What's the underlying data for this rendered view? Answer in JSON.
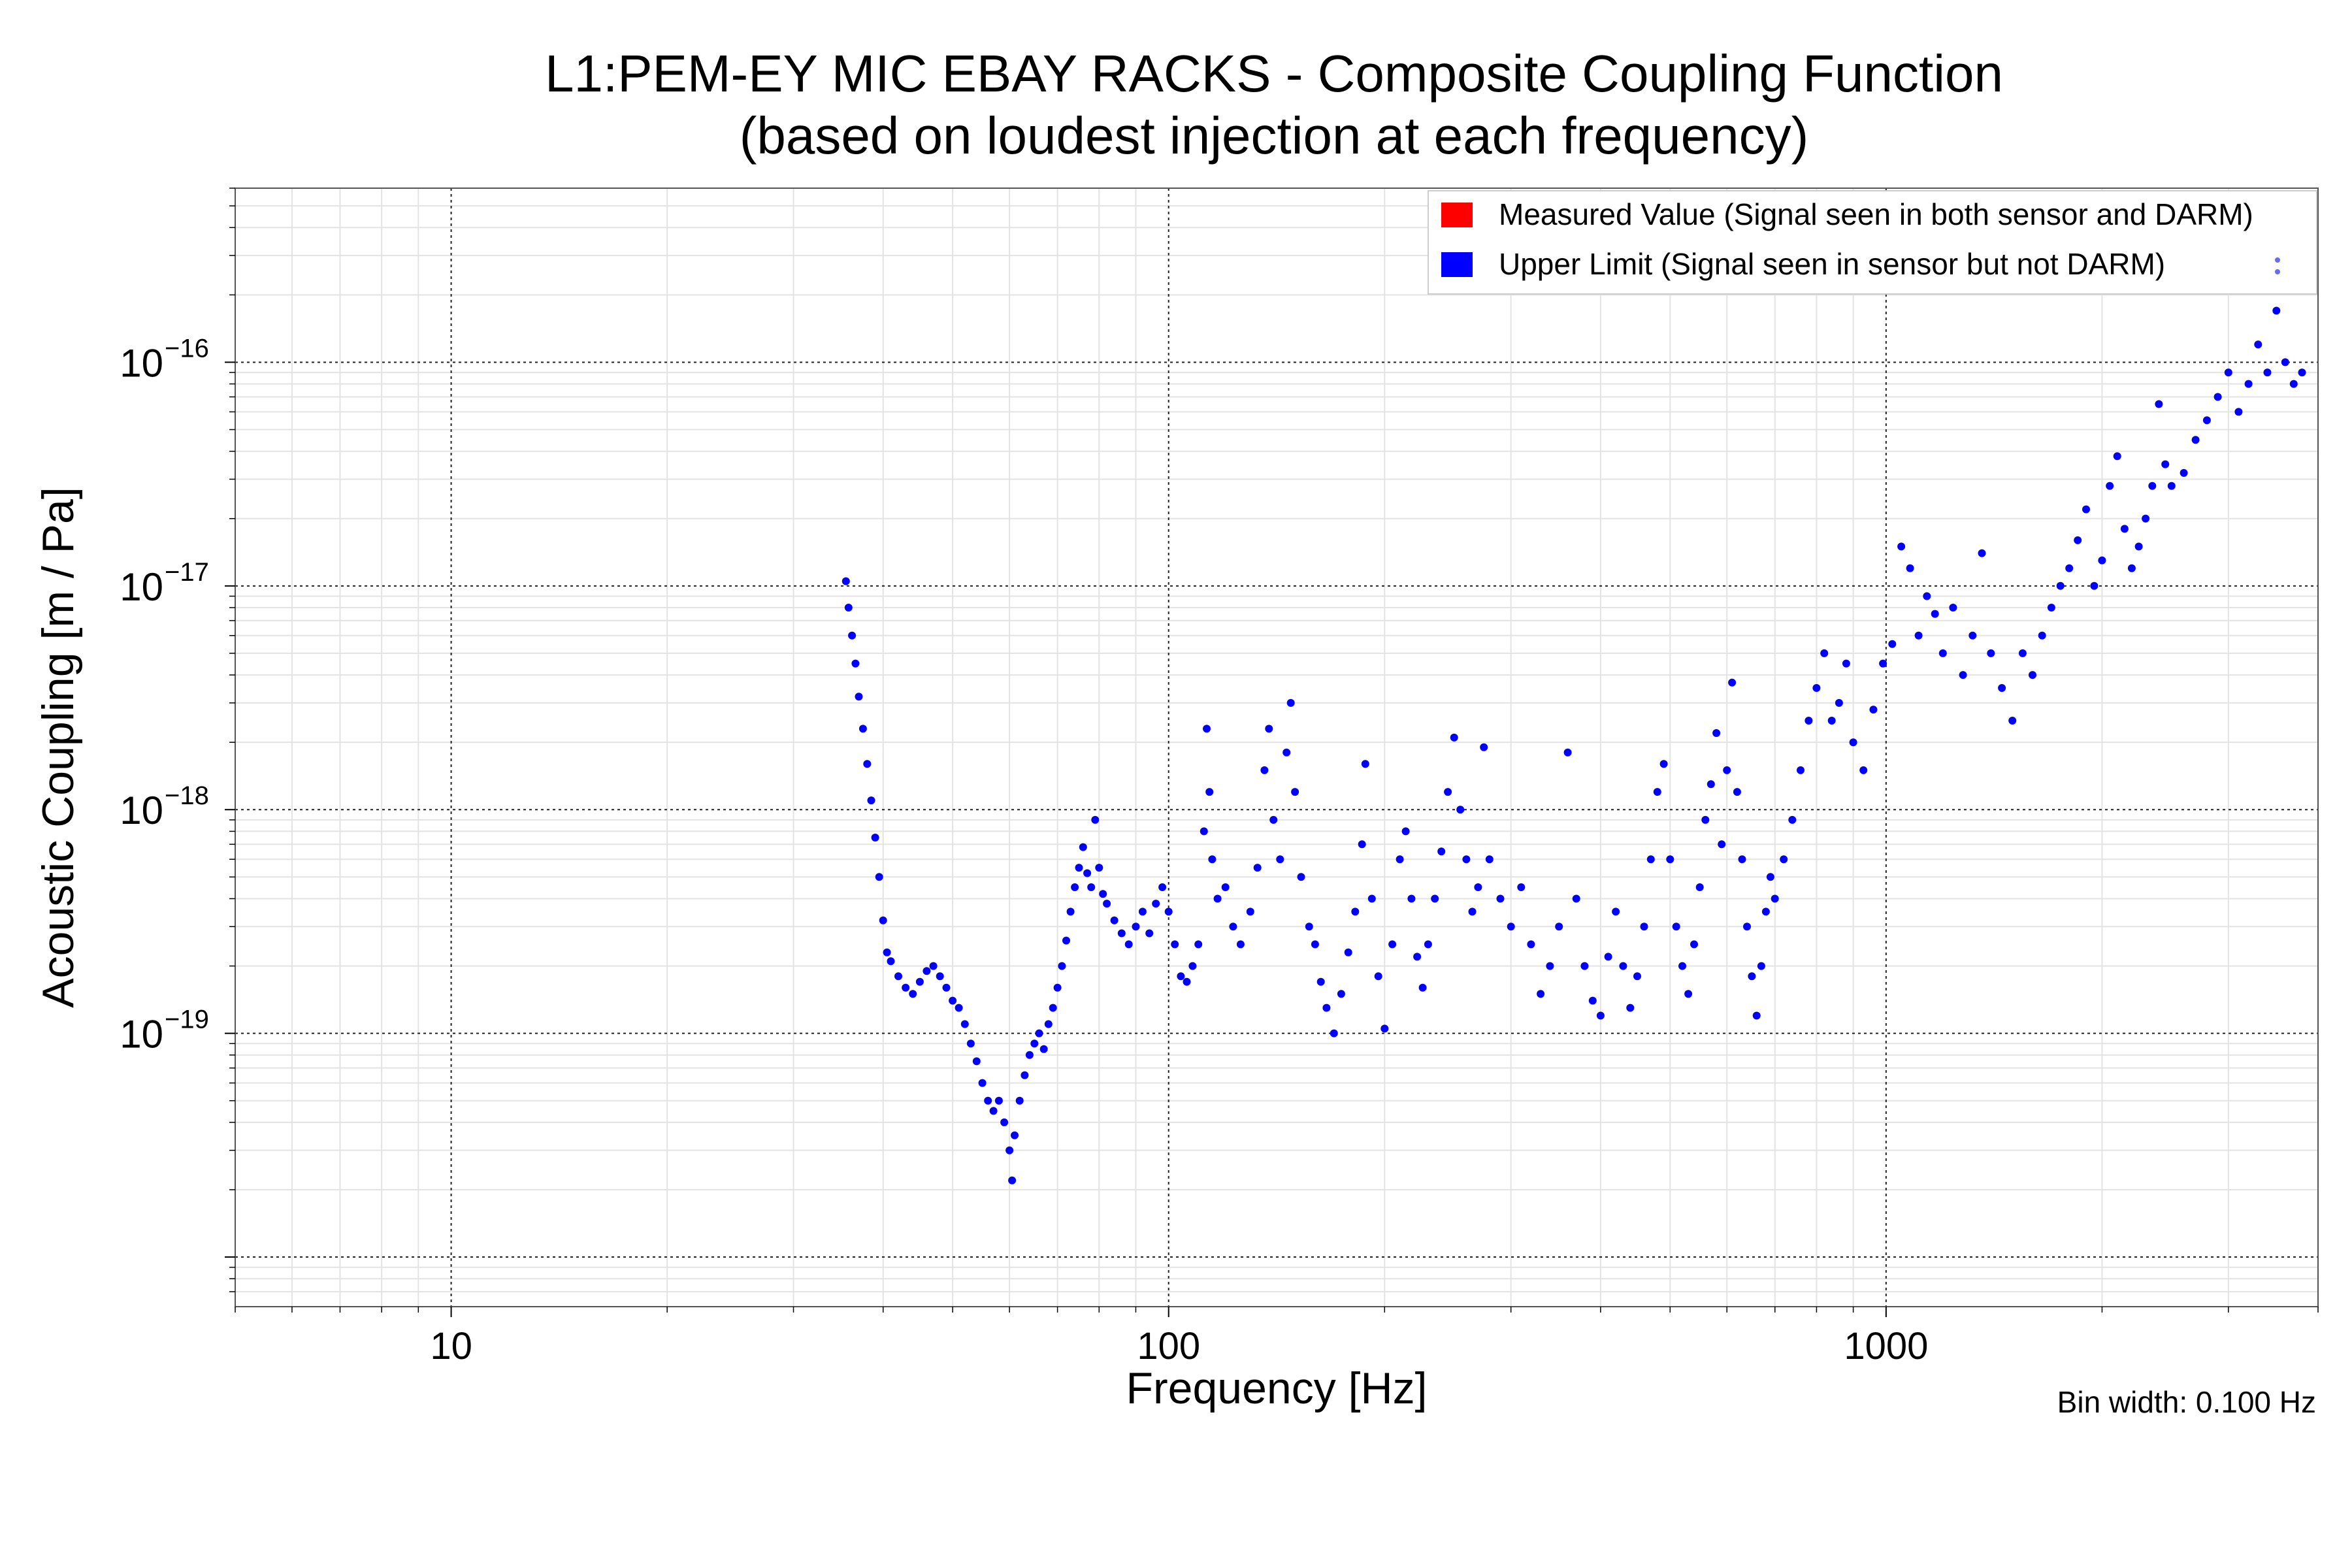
{
  "chart_data": {
    "type": "scatter",
    "title_line1": "L1:PEM-EY MIC EBAY RACKS - Composite Coupling Function",
    "title_line2": "(based on loudest injection at each frequency)",
    "xlabel": "Frequency [Hz]",
    "ylabel": "Acoustic Coupling [m / Pa]",
    "x_scale": "log",
    "y_scale": "log",
    "xlim": [
      5,
      4000
    ],
    "ylim": [
      6e-21,
      6e-16
    ],
    "grid": true,
    "legend_placement": "top-right",
    "x_tick_labels": [
      {
        "value": 10,
        "label": "10"
      },
      {
        "value": 100,
        "label": "100"
      },
      {
        "value": 1000,
        "label": "1000"
      }
    ],
    "y_tick_labels": [
      {
        "value": 1e-19,
        "base": "10",
        "exp": "−19"
      },
      {
        "value": 1e-18,
        "base": "10",
        "exp": "−18"
      },
      {
        "value": 1e-17,
        "base": "10",
        "exp": "−17"
      },
      {
        "value": 1e-16,
        "base": "10",
        "exp": "−16"
      }
    ],
    "annotation": "Bin width: 0.100 Hz",
    "series": [
      {
        "name": "Measured Value (Signal seen in both sensor and DARM)",
        "color": "#ff0000",
        "points": []
      },
      {
        "name": "Upper Limit (Signal seen in sensor but not DARM)",
        "color": "#0000ff",
        "points": [
          [
            35.5,
            1.05e-17
          ],
          [
            35.8,
            8e-18
          ],
          [
            36.2,
            6e-18
          ],
          [
            36.6,
            4.5e-18
          ],
          [
            37.0,
            3.2e-18
          ],
          [
            37.5,
            2.3e-18
          ],
          [
            38.0,
            1.6e-18
          ],
          [
            38.5,
            1.1e-18
          ],
          [
            39.0,
            7.5e-19
          ],
          [
            39.5,
            5e-19
          ],
          [
            40.0,
            3.2e-19
          ],
          [
            40.5,
            2.3e-19
          ],
          [
            41.0,
            2.1e-19
          ],
          [
            42.0,
            1.8e-19
          ],
          [
            43.0,
            1.6e-19
          ],
          [
            44.0,
            1.5e-19
          ],
          [
            45.0,
            1.7e-19
          ],
          [
            46.0,
            1.9e-19
          ],
          [
            47.0,
            2e-19
          ],
          [
            48.0,
            1.8e-19
          ],
          [
            49.0,
            1.6e-19
          ],
          [
            50.0,
            1.4e-19
          ],
          [
            51.0,
            1.3e-19
          ],
          [
            52.0,
            1.1e-19
          ],
          [
            53.0,
            9e-20
          ],
          [
            54.0,
            7.5e-20
          ],
          [
            55.0,
            6e-20
          ],
          [
            56.0,
            5e-20
          ],
          [
            57.0,
            4.5e-20
          ],
          [
            58.0,
            5e-20
          ],
          [
            59.0,
            4e-20
          ],
          [
            60.0,
            3e-20
          ],
          [
            60.5,
            2.2e-20
          ],
          [
            61.0,
            3.5e-20
          ],
          [
            62.0,
            5e-20
          ],
          [
            63.0,
            6.5e-20
          ],
          [
            64.0,
            8e-20
          ],
          [
            65.0,
            9e-20
          ],
          [
            66.0,
            1e-19
          ],
          [
            67.0,
            8.5e-20
          ],
          [
            68.0,
            1.1e-19
          ],
          [
            69.0,
            1.3e-19
          ],
          [
            70.0,
            1.6e-19
          ],
          [
            71.0,
            2e-19
          ],
          [
            72.0,
            2.6e-19
          ],
          [
            73.0,
            3.5e-19
          ],
          [
            74.0,
            4.5e-19
          ],
          [
            75.0,
            5.5e-19
          ],
          [
            76.0,
            6.8e-19
          ],
          [
            77.0,
            5.2e-19
          ],
          [
            78.0,
            4.5e-19
          ],
          [
            79.0,
            9e-19
          ],
          [
            80.0,
            5.5e-19
          ],
          [
            81.0,
            4.2e-19
          ],
          [
            82.0,
            3.8e-19
          ],
          [
            84.0,
            3.2e-19
          ],
          [
            86.0,
            2.8e-19
          ],
          [
            88.0,
            2.5e-19
          ],
          [
            90.0,
            3e-19
          ],
          [
            92.0,
            3.5e-19
          ],
          [
            94.0,
            2.8e-19
          ],
          [
            96.0,
            3.8e-19
          ],
          [
            98.0,
            4.5e-19
          ],
          [
            100.0,
            3.5e-19
          ],
          [
            102.0,
            2.5e-19
          ],
          [
            104.0,
            1.8e-19
          ],
          [
            106.0,
            1.7e-19
          ],
          [
            108.0,
            2e-19
          ],
          [
            110.0,
            2.5e-19
          ],
          [
            112.0,
            8e-19
          ],
          [
            113.0,
            2.3e-18
          ],
          [
            114.0,
            1.2e-18
          ],
          [
            115.0,
            6e-19
          ],
          [
            117.0,
            4e-19
          ],
          [
            120.0,
            4.5e-19
          ],
          [
            123.0,
            3e-19
          ],
          [
            126.0,
            2.5e-19
          ],
          [
            130.0,
            3.5e-19
          ],
          [
            133.0,
            5.5e-19
          ],
          [
            136.0,
            1.5e-18
          ],
          [
            138.0,
            2.3e-18
          ],
          [
            140.0,
            9e-19
          ],
          [
            143.0,
            6e-19
          ],
          [
            146.0,
            1.8e-18
          ],
          [
            148.0,
            3e-18
          ],
          [
            150.0,
            1.2e-18
          ],
          [
            153.0,
            5e-19
          ],
          [
            157.0,
            3e-19
          ],
          [
            160.0,
            2.5e-19
          ],
          [
            163.0,
            1.7e-19
          ],
          [
            166.0,
            1.3e-19
          ],
          [
            170.0,
            1e-19
          ],
          [
            174.0,
            1.5e-19
          ],
          [
            178.0,
            2.3e-19
          ],
          [
            182.0,
            3.5e-19
          ],
          [
            186.0,
            7e-19
          ],
          [
            188.0,
            1.6e-18
          ],
          [
            192.0,
            4e-19
          ],
          [
            196.0,
            1.8e-19
          ],
          [
            200.0,
            1.05e-19
          ],
          [
            205.0,
            2.5e-19
          ],
          [
            210.0,
            6e-19
          ],
          [
            214.0,
            8e-19
          ],
          [
            218.0,
            4e-19
          ],
          [
            222.0,
            2.2e-19
          ],
          [
            226.0,
            1.6e-19
          ],
          [
            230.0,
            2.5e-19
          ],
          [
            235.0,
            4e-19
          ],
          [
            240.0,
            6.5e-19
          ],
          [
            245.0,
            1.2e-18
          ],
          [
            250.0,
            2.1e-18
          ],
          [
            255.0,
            1e-18
          ],
          [
            260.0,
            6e-19
          ],
          [
            265.0,
            3.5e-19
          ],
          [
            270.0,
            4.5e-19
          ],
          [
            275.0,
            1.9e-18
          ],
          [
            280.0,
            6e-19
          ],
          [
            290.0,
            4e-19
          ],
          [
            300.0,
            3e-19
          ],
          [
            310.0,
            4.5e-19
          ],
          [
            320.0,
            2.5e-19
          ],
          [
            330.0,
            1.5e-19
          ],
          [
            340.0,
            2e-19
          ],
          [
            350.0,
            3e-19
          ],
          [
            360.0,
            1.8e-18
          ],
          [
            370.0,
            4e-19
          ],
          [
            380.0,
            2e-19
          ],
          [
            390.0,
            1.4e-19
          ],
          [
            400.0,
            1.2e-19
          ],
          [
            410.0,
            2.2e-19
          ],
          [
            420.0,
            3.5e-19
          ],
          [
            430.0,
            2e-19
          ],
          [
            440.0,
            1.3e-19
          ],
          [
            450.0,
            1.8e-19
          ],
          [
            460.0,
            3e-19
          ],
          [
            470.0,
            6e-19
          ],
          [
            480.0,
            1.2e-18
          ],
          [
            490.0,
            1.6e-18
          ],
          [
            500.0,
            6e-19
          ],
          [
            510.0,
            3e-19
          ],
          [
            520.0,
            2e-19
          ],
          [
            530.0,
            1.5e-19
          ],
          [
            540.0,
            2.5e-19
          ],
          [
            550.0,
            4.5e-19
          ],
          [
            560.0,
            9e-19
          ],
          [
            570.0,
            1.3e-18
          ],
          [
            580.0,
            2.2e-18
          ],
          [
            590.0,
            7e-19
          ],
          [
            600.0,
            1.5e-18
          ],
          [
            610.0,
            3.7e-18
          ],
          [
            620.0,
            1.2e-18
          ],
          [
            630.0,
            6e-19
          ],
          [
            640.0,
            3e-19
          ],
          [
            650.0,
            1.8e-19
          ],
          [
            660.0,
            1.2e-19
          ],
          [
            670.0,
            2e-19
          ],
          [
            680.0,
            3.5e-19
          ],
          [
            690.0,
            5e-19
          ],
          [
            700.0,
            4e-19
          ],
          [
            720.0,
            6e-19
          ],
          [
            740.0,
            9e-19
          ],
          [
            760.0,
            1.5e-18
          ],
          [
            780.0,
            2.5e-18
          ],
          [
            800.0,
            3.5e-18
          ],
          [
            820.0,
            5e-18
          ],
          [
            840.0,
            2.5e-18
          ],
          [
            860.0,
            3e-18
          ],
          [
            880.0,
            4.5e-18
          ],
          [
            900.0,
            2e-18
          ],
          [
            930.0,
            1.5e-18
          ],
          [
            960.0,
            2.8e-18
          ],
          [
            990.0,
            4.5e-18
          ],
          [
            1020.0,
            5.5e-18
          ],
          [
            1050.0,
            1.5e-17
          ],
          [
            1080.0,
            1.2e-17
          ],
          [
            1110.0,
            6e-18
          ],
          [
            1140.0,
            9e-18
          ],
          [
            1170.0,
            7.5e-18
          ],
          [
            1200.0,
            5e-18
          ],
          [
            1240.0,
            8e-18
          ],
          [
            1280.0,
            4e-18
          ],
          [
            1320.0,
            6e-18
          ],
          [
            1360.0,
            1.4e-17
          ],
          [
            1400.0,
            5e-18
          ],
          [
            1450.0,
            3.5e-18
          ],
          [
            1500.0,
            2.5e-18
          ],
          [
            1550.0,
            5e-18
          ],
          [
            1600.0,
            4e-18
          ],
          [
            1650.0,
            6e-18
          ],
          [
            1700.0,
            8e-18
          ],
          [
            1750.0,
            1e-17
          ],
          [
            1800.0,
            1.2e-17
          ],
          [
            1850.0,
            1.6e-17
          ],
          [
            1900.0,
            2.2e-17
          ],
          [
            1950.0,
            1e-17
          ],
          [
            2000.0,
            1.3e-17
          ],
          [
            2050.0,
            2.8e-17
          ],
          [
            2100.0,
            3.8e-17
          ],
          [
            2150.0,
            1.8e-17
          ],
          [
            2200.0,
            1.2e-17
          ],
          [
            2250.0,
            1.5e-17
          ],
          [
            2300.0,
            2e-17
          ],
          [
            2350.0,
            2.8e-17
          ],
          [
            2400.0,
            6.5e-17
          ],
          [
            2450.0,
            3.5e-17
          ],
          [
            2500.0,
            2.8e-17
          ],
          [
            2600.0,
            3.2e-17
          ],
          [
            2700.0,
            4.5e-17
          ],
          [
            2800.0,
            5.5e-17
          ],
          [
            2900.0,
            7e-17
          ],
          [
            3000.0,
            9e-17
          ],
          [
            3100.0,
            6e-17
          ],
          [
            3200.0,
            8e-17
          ],
          [
            3300.0,
            1.2e-16
          ],
          [
            3400.0,
            9e-17
          ],
          [
            3500.0,
            1.7e-16
          ],
          [
            3600.0,
            1e-16
          ],
          [
            3700.0,
            8e-17
          ],
          [
            3800.0,
            9e-17
          ]
        ]
      }
    ]
  }
}
